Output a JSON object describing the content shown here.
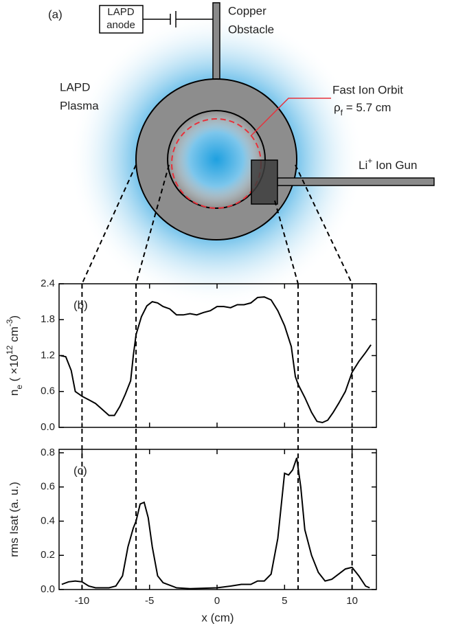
{
  "diagram": {
    "panel_label": "(a)",
    "anode_label": [
      "LAPD",
      "anode"
    ],
    "obstacle_label": [
      "Copper",
      "Obstacle"
    ],
    "plasma_label": [
      "LAPD",
      "Plasma"
    ],
    "orbit_label": "Fast Ion Orbit",
    "orbit_radius_label": [
      "ρ",
      "f",
      " = 5.7 cm"
    ],
    "gun_label": [
      "Li",
      "+",
      " Ion Gun"
    ]
  },
  "chart_data": [
    {
      "type": "line",
      "panel_label": "(b)",
      "ylabel": [
        "n",
        "e",
        " ( ×10",
        "12",
        " cm",
        "-3",
        ")"
      ],
      "x": [
        -11.6,
        -11.2,
        -10.8,
        -10.5,
        -10,
        -9.5,
        -9,
        -8.5,
        -8,
        -7.6,
        -7.2,
        -6.8,
        -6.4,
        -6.2,
        -6,
        -5.6,
        -5.2,
        -4.8,
        -4.4,
        -4,
        -3.5,
        -3,
        -2.5,
        -2,
        -1.5,
        -1,
        -0.5,
        0,
        0.5,
        1,
        1.5,
        2,
        2.5,
        3,
        3.5,
        4,
        4.5,
        5,
        5.5,
        5.8,
        6,
        6.5,
        7,
        7.4,
        7.8,
        8.2,
        8.6,
        9,
        9.5,
        10,
        10.5,
        11,
        11.4
      ],
      "values": [
        1.2,
        1.18,
        0.95,
        0.6,
        0.52,
        0.46,
        0.4,
        0.3,
        0.2,
        0.2,
        0.35,
        0.55,
        0.78,
        1.2,
        1.55,
        1.85,
        2.03,
        2.1,
        2.08,
        2.02,
        1.98,
        1.88,
        1.88,
        1.9,
        1.88,
        1.92,
        1.95,
        2.02,
        2.02,
        2.0,
        2.05,
        2.05,
        2.08,
        2.17,
        2.18,
        2.13,
        1.95,
        1.7,
        1.35,
        0.85,
        0.72,
        0.5,
        0.25,
        0.1,
        0.08,
        0.12,
        0.25,
        0.4,
        0.6,
        0.92,
        1.1,
        1.25,
        1.38
      ],
      "color": "#000000",
      "xlim": [
        -11.7,
        11.8
      ],
      "xticks": [
        -10,
        -5,
        0,
        5,
        10
      ],
      "xtick_labels": false,
      "ylim": [
        0,
        2.4
      ],
      "yticks": [
        {
          "value": 0,
          "label": "0.0"
        },
        0.6,
        1.2,
        1.8,
        2.4
      ],
      "vlines": [
        -10,
        -6,
        6,
        10
      ]
    },
    {
      "type": "line",
      "panel_label": "(c)",
      "ylabel": [
        "rms Isat (a. u.)"
      ],
      "xlabel": "x (cm)",
      "x": [
        -11.5,
        -11,
        -10.5,
        -10,
        -9.5,
        -9,
        -8,
        -7.5,
        -7,
        -6.6,
        -6.2,
        -6,
        -5.7,
        -5.4,
        -5.1,
        -4.8,
        -4.4,
        -4,
        -3,
        -2,
        0,
        1,
        1.8,
        2.5,
        3,
        3.5,
        4,
        4.5,
        5,
        5.3,
        5.6,
        5.9,
        6.2,
        6.5,
        7,
        7.5,
        8,
        8.5,
        9,
        9.5,
        10,
        10.5,
        11,
        11.3
      ],
      "values": [
        0.03,
        0.045,
        0.05,
        0.045,
        0.02,
        0.01,
        0.01,
        0.02,
        0.08,
        0.25,
        0.36,
        0.4,
        0.5,
        0.51,
        0.42,
        0.25,
        0.08,
        0.04,
        0.01,
        0.005,
        0.01,
        0.02,
        0.03,
        0.03,
        0.05,
        0.05,
        0.09,
        0.3,
        0.68,
        0.67,
        0.7,
        0.77,
        0.6,
        0.35,
        0.2,
        0.1,
        0.05,
        0.06,
        0.09,
        0.12,
        0.13,
        0.08,
        0.02,
        0.01
      ],
      "color": "#000000",
      "xlim": [
        -11.7,
        11.8
      ],
      "xticks": [
        -10,
        -5,
        0,
        5,
        10
      ],
      "xtick_labels": true,
      "ylim": [
        0,
        0.82
      ],
      "yticks": [
        {
          "value": 0,
          "label": "0.0"
        },
        0.2,
        0.4,
        0.6,
        0.8
      ],
      "vlines": [
        -10,
        -6,
        6,
        10
      ]
    }
  ]
}
